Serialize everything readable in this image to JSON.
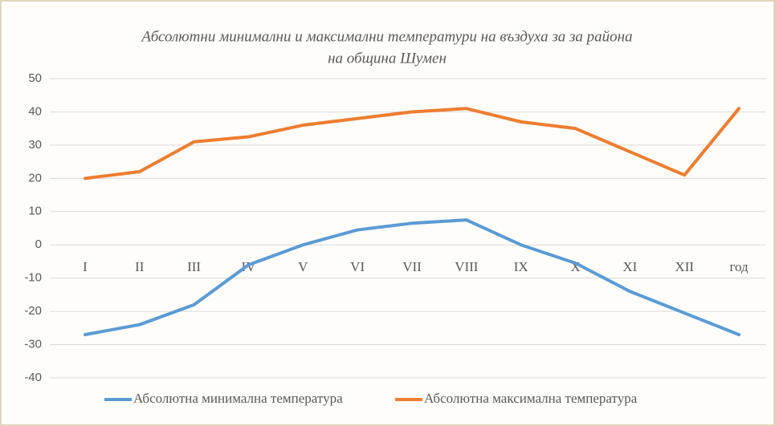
{
  "chart_data": {
    "type": "line",
    "title": [
      "Абсолютни минимални и максимални температури на въздуха за за района",
      "на община Шумен"
    ],
    "categories": [
      "I",
      "II",
      "III",
      "IV",
      "V",
      "VI",
      "VII",
      "VIII",
      "IX",
      "X",
      "XI",
      "XII",
      "год"
    ],
    "series": [
      {
        "name": "Абсолютна минимална температура",
        "color": "#5b9bd5",
        "values": [
          -27,
          -24,
          -18,
          -6,
          0,
          4.5,
          6.5,
          7.5,
          0,
          -5.5,
          -14,
          -20.5,
          -27
        ]
      },
      {
        "name": "Абсолютна максимална температура",
        "color": "#ed7d31",
        "values": [
          20,
          22,
          31,
          32.5,
          36,
          38,
          40,
          41,
          37,
          35,
          28,
          21,
          41
        ]
      }
    ],
    "ylim": [
      -40,
      50
    ],
    "yticks": [
      -40,
      -30,
      -20,
      -10,
      0,
      10,
      20,
      30,
      40,
      50
    ],
    "grid": true,
    "legend": "bottom"
  }
}
